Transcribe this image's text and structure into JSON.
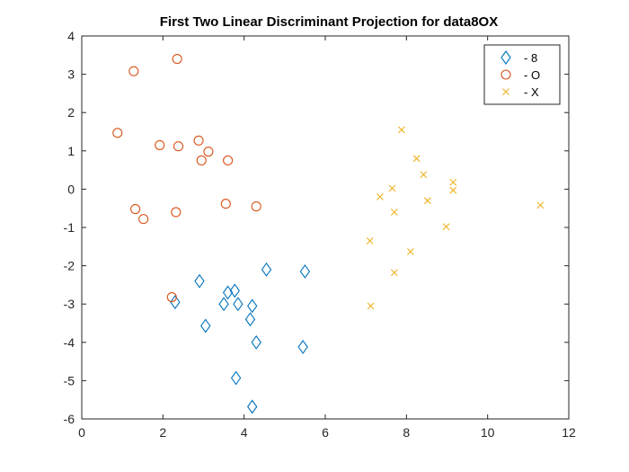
{
  "chart_data": {
    "type": "scatter",
    "title": "First Two Linear Discriminant Projection for data8OX",
    "xlabel": "",
    "ylabel": "",
    "xlim": [
      0,
      12
    ],
    "ylim": [
      -6,
      4
    ],
    "xticks": [
      0,
      2,
      4,
      6,
      8,
      10,
      12
    ],
    "yticks": [
      -6,
      -5,
      -4,
      -3,
      -2,
      -1,
      0,
      1,
      2,
      3,
      4
    ],
    "grid": false,
    "legend_position": "top-right",
    "series": [
      {
        "name": "- 8",
        "marker": "diamond",
        "color": "#0072BD",
        "points": [
          [
            2.3,
            -2.95
          ],
          [
            2.9,
            -2.4
          ],
          [
            3.05,
            -3.57
          ],
          [
            3.5,
            -3.0
          ],
          [
            3.6,
            -2.7
          ],
          [
            3.77,
            -2.65
          ],
          [
            3.8,
            -4.93
          ],
          [
            3.85,
            -3.0
          ],
          [
            4.15,
            -3.4
          ],
          [
            4.2,
            -3.05
          ],
          [
            4.3,
            -4.0
          ],
          [
            4.2,
            -5.68
          ],
          [
            4.55,
            -2.1
          ],
          [
            5.45,
            -4.12
          ],
          [
            5.5,
            -2.15
          ]
        ]
      },
      {
        "name": "- O",
        "marker": "circle",
        "color": "#D95319",
        "points": [
          [
            0.88,
            1.47
          ],
          [
            1.28,
            3.08
          ],
          [
            1.32,
            -0.52
          ],
          [
            1.52,
            -0.78
          ],
          [
            1.92,
            1.15
          ],
          [
            2.22,
            -2.82
          ],
          [
            2.32,
            -0.6
          ],
          [
            2.35,
            3.4
          ],
          [
            2.38,
            1.12
          ],
          [
            2.88,
            1.27
          ],
          [
            2.95,
            0.75
          ],
          [
            3.12,
            0.98
          ],
          [
            3.55,
            -0.38
          ],
          [
            3.6,
            0.75
          ],
          [
            4.3,
            -0.45
          ]
        ]
      },
      {
        "name": "- X",
        "marker": "x",
        "color": "#EDB120",
        "points": [
          [
            7.1,
            -1.35
          ],
          [
            7.12,
            -3.05
          ],
          [
            7.35,
            -0.2
          ],
          [
            7.65,
            0.02
          ],
          [
            7.7,
            -0.6
          ],
          [
            7.7,
            -2.18
          ],
          [
            7.88,
            1.55
          ],
          [
            8.1,
            -1.63
          ],
          [
            8.25,
            0.8
          ],
          [
            8.42,
            0.38
          ],
          [
            8.52,
            -0.3
          ],
          [
            8.98,
            -0.98
          ],
          [
            9.15,
            0.18
          ],
          [
            9.15,
            -0.03
          ],
          [
            11.3,
            -0.42
          ]
        ]
      }
    ]
  }
}
